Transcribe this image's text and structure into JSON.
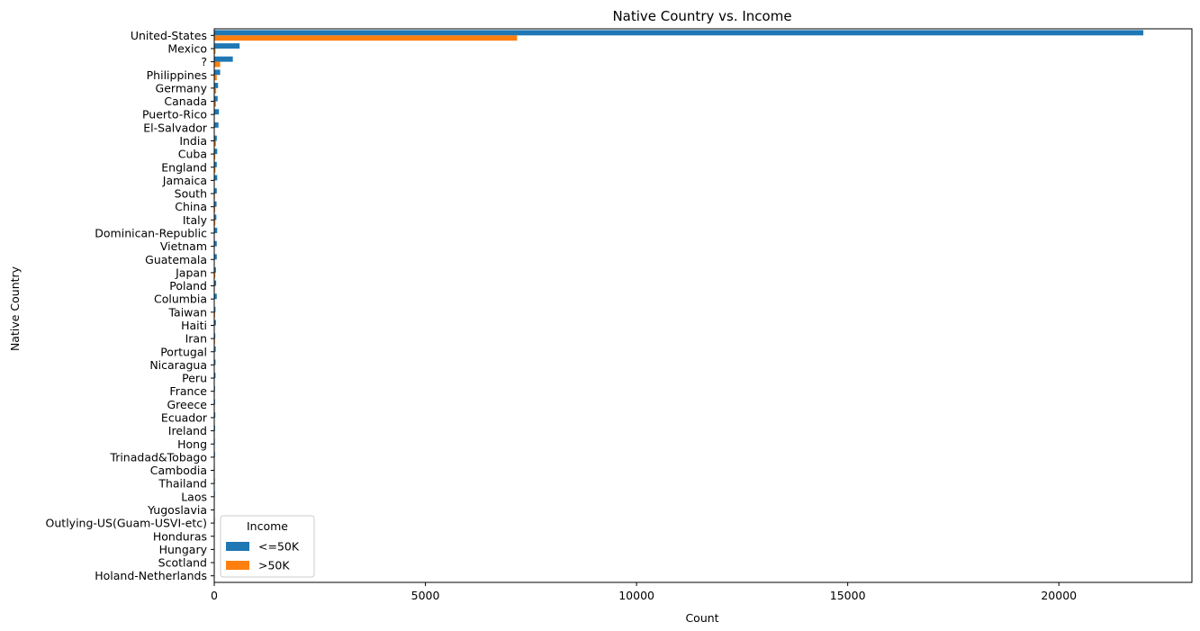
{
  "chart_data": {
    "type": "bar",
    "orientation": "horizontal",
    "title": "Native Country vs. Income",
    "xlabel": "Count",
    "ylabel": "Native Country",
    "xlim": [
      0,
      23150
    ],
    "xticks": [
      0,
      5000,
      10000,
      15000,
      20000
    ],
    "grid": false,
    "legend": {
      "title": "Income",
      "placement": "lower-left"
    },
    "categories": [
      "United-States",
      "Mexico",
      "?",
      "Philippines",
      "Germany",
      "Canada",
      "Puerto-Rico",
      "El-Salvador",
      "India",
      "Cuba",
      "England",
      "Jamaica",
      "South",
      "China",
      "Italy",
      "Dominican-Republic",
      "Vietnam",
      "Guatemala",
      "Japan",
      "Poland",
      "Columbia",
      "Taiwan",
      "Haiti",
      "Iran",
      "Portugal",
      "Nicaragua",
      "Peru",
      "France",
      "Greece",
      "Ecuador",
      "Ireland",
      "Hong",
      "Trinadad&Tobago",
      "Cambodia",
      "Thailand",
      "Laos",
      "Yugoslavia",
      "Outlying-US(Guam-USVI-etc)",
      "Honduras",
      "Hungary",
      "Scotland",
      "Holand-Netherlands"
    ],
    "series": [
      {
        "name": "<=50K",
        "color": "#1f77b4",
        "values": [
          22000,
          600,
          440,
          140,
          90,
          80,
          110,
          100,
          60,
          70,
          60,
          70,
          60,
          55,
          50,
          70,
          60,
          60,
          40,
          45,
          60,
          30,
          40,
          25,
          35,
          30,
          30,
          18,
          20,
          25,
          20,
          15,
          18,
          12,
          15,
          15,
          10,
          14,
          12,
          10,
          9,
          1
        ]
      },
      {
        "name": ">50K",
        "color": "#ff7f0e",
        "values": [
          7170,
          30,
          140,
          60,
          45,
          40,
          10,
          10,
          40,
          25,
          30,
          10,
          15,
          20,
          25,
          3,
          5,
          3,
          25,
          12,
          2,
          20,
          4,
          18,
          4,
          2,
          2,
          12,
          8,
          4,
          5,
          6,
          2,
          7,
          3,
          2,
          6,
          0,
          1,
          3,
          3,
          0
        ]
      }
    ]
  }
}
